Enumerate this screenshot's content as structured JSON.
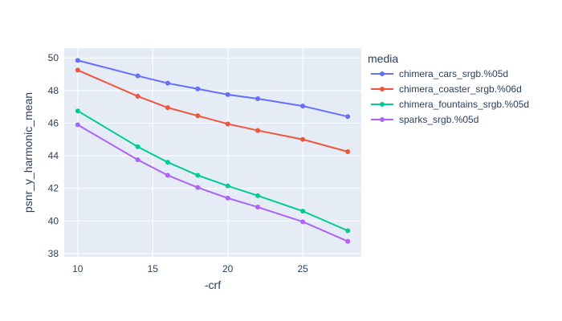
{
  "chart_data": {
    "type": "line",
    "xlabel": "-crf",
    "ylabel": "psnr_y_harmonic_mean",
    "xlim": [
      9.1,
      28.9
    ],
    "ylim": [
      37.8,
      50.6
    ],
    "xticks": [
      10,
      15,
      20,
      25
    ],
    "yticks": [
      38,
      40,
      42,
      44,
      46,
      48,
      50
    ],
    "grid": true,
    "legend_title": "media",
    "legend_position": "right",
    "x": [
      10,
      14,
      16,
      18,
      20,
      22,
      25,
      28
    ],
    "series": [
      {
        "name": "chimera_cars_srgb.%05d",
        "color": "#636efa",
        "values": [
          49.85,
          48.9,
          48.45,
          48.1,
          47.75,
          47.5,
          47.05,
          46.4
        ]
      },
      {
        "name": "chimera_coaster_srgb.%06d",
        "color": "#ef553b",
        "values": [
          49.25,
          47.65,
          46.95,
          46.45,
          45.95,
          45.55,
          45.0,
          44.25
        ]
      },
      {
        "name": "chimera_fountains_srgb.%05d",
        "color": "#00cc96",
        "values": [
          46.75,
          44.55,
          43.6,
          42.8,
          42.15,
          41.55,
          40.6,
          39.4
        ]
      },
      {
        "name": "sparks_srgb.%05d",
        "color": "#ab63fa",
        "values": [
          45.9,
          43.75,
          42.8,
          42.05,
          41.4,
          40.85,
          39.95,
          38.75
        ]
      }
    ]
  },
  "colors": {
    "plot_bg": "#e5ecf6",
    "grid": "#ffffff",
    "text": "#2a3f5f"
  }
}
